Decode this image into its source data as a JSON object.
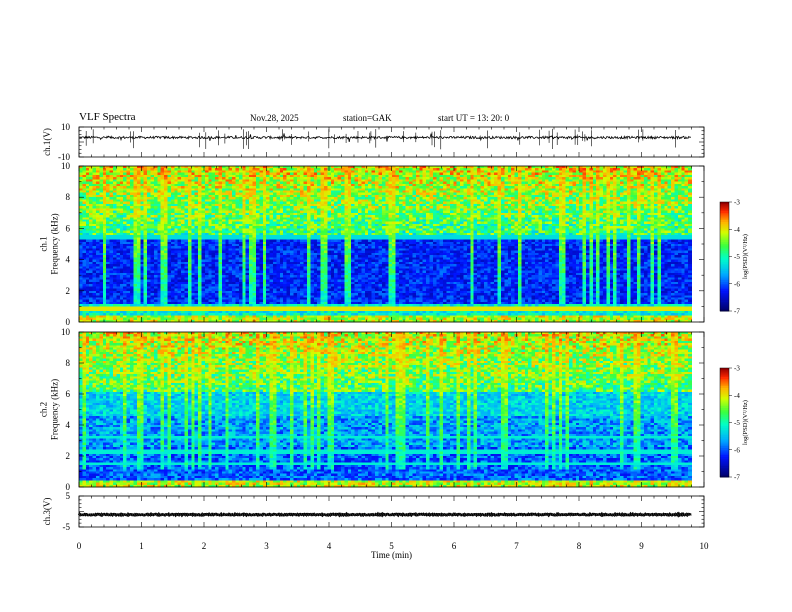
{
  "header": {
    "title": "VLF  Spectra",
    "date": "Nov.28,  2025",
    "station": "station=GAK",
    "start": "start  UT  =    13: 20: 0"
  },
  "chart_data": [
    {
      "type": "line",
      "panel": "ch1-waveform",
      "ylabel": "ch.1(V)",
      "ylim": [
        -10,
        10
      ],
      "y_tick_labels": [
        "10",
        "-10"
      ],
      "xlim": [
        0,
        10
      ],
      "baseline": 3,
      "color": "#000000"
    },
    {
      "type": "heatmap",
      "panel": "ch1-spectrogram",
      "ylabel": "ch.1\nFrequency  (kHz)",
      "ylim": [
        0,
        10
      ],
      "y_tick_labels": [
        "0",
        "2",
        "4",
        "6",
        "8",
        "10"
      ],
      "xlim": [
        0,
        10
      ],
      "data_extent_min": 9.8,
      "colorbar": {
        "label": "log(PSD)(V²/Hz)",
        "range": [
          -7,
          -3
        ],
        "tick_labels": [
          "-3",
          "-4",
          "-5",
          "-6",
          "-7"
        ]
      }
    },
    {
      "type": "heatmap",
      "panel": "ch2-spectrogram",
      "ylabel": "ch.2\nFrequency  (kHz)",
      "ylim": [
        0,
        10
      ],
      "y_tick_labels": [
        "0",
        "2",
        "4",
        "6",
        "8",
        "10"
      ],
      "xlim": [
        0,
        10
      ],
      "data_extent_min": 9.8,
      "colorbar": {
        "label": "log(PSD)(V²/Hz)",
        "range": [
          -7,
          -3
        ],
        "tick_labels": [
          "-3",
          "-4",
          "-5",
          "-6",
          "-7"
        ]
      }
    },
    {
      "type": "line",
      "panel": "ch3-waveform",
      "ylabel": "ch.3(V)",
      "ylim": [
        -5,
        5
      ],
      "y_tick_labels": [
        "5",
        "-5"
      ],
      "xlim": [
        0,
        10
      ],
      "xlabel": "Time  (min)",
      "x_tick_labels": [
        "0",
        "1",
        "2",
        "3",
        "4",
        "5",
        "6",
        "7",
        "8",
        "9",
        "10"
      ],
      "baseline": -1,
      "color": "#000000"
    }
  ]
}
